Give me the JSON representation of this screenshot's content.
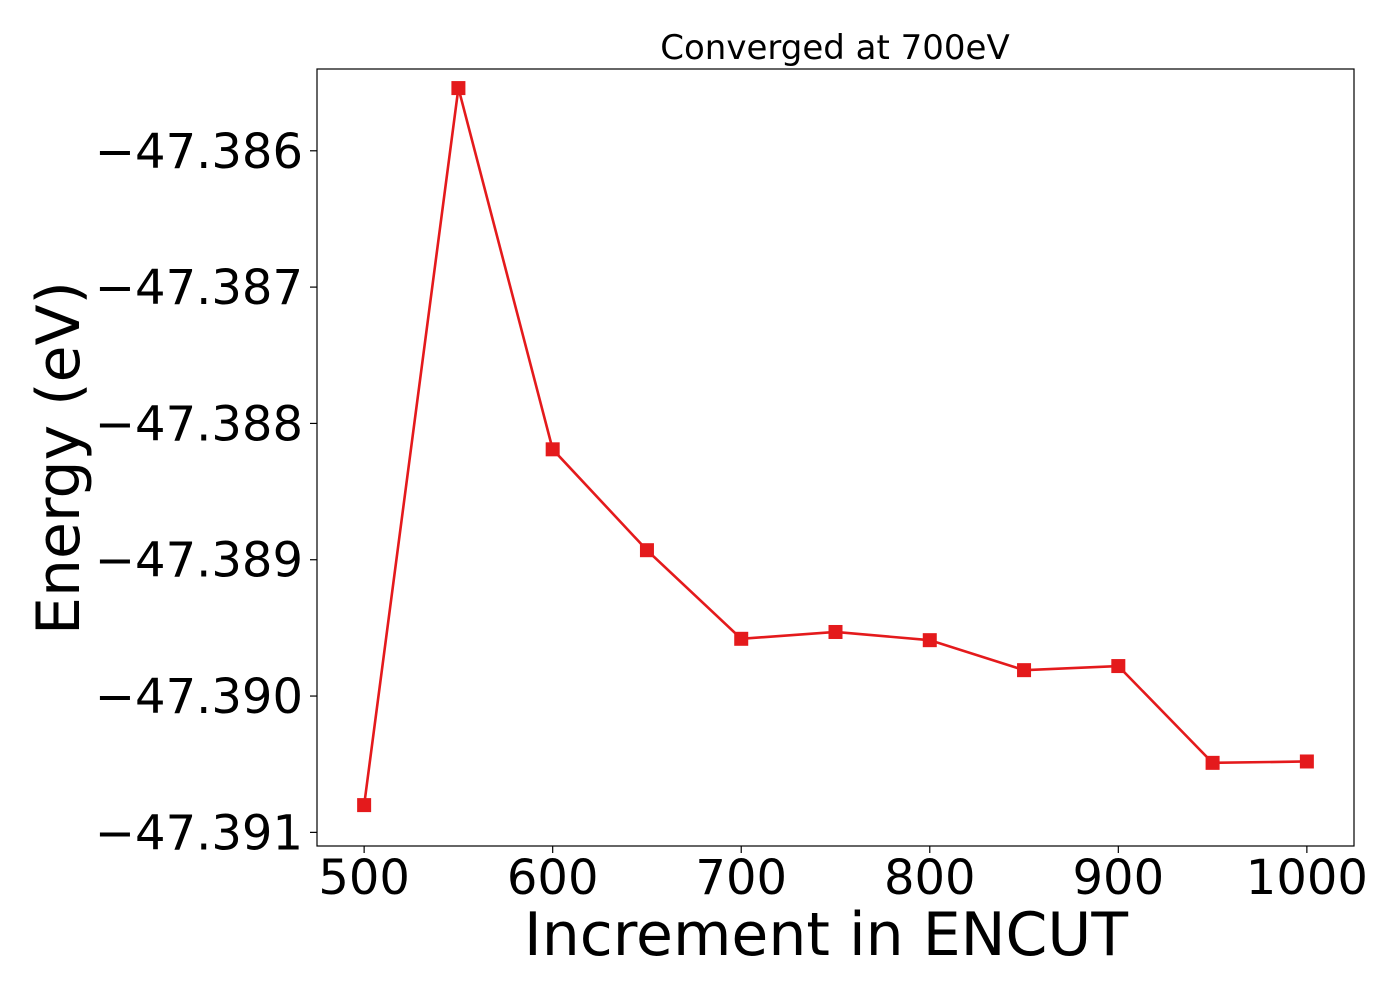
{
  "chart_data": {
    "type": "line",
    "title": "Converged at 700eV",
    "xlabel": "Increment in ENCUT",
    "ylabel": "Energy (eV)",
    "xlim": [
      475,
      1025
    ],
    "ylim": [
      -47.3911,
      -47.3854
    ],
    "xticks": [
      500,
      600,
      700,
      800,
      900,
      1000
    ],
    "xtick_labels": [
      "500",
      "600",
      "700",
      "800",
      "900",
      "1000"
    ],
    "yticks": [
      -47.386,
      -47.387,
      -47.388,
      -47.389,
      -47.39,
      -47.391
    ],
    "ytick_labels": [
      "−47.386",
      "−47.387",
      "−47.388",
      "−47.389",
      "−47.390",
      "−47.391"
    ],
    "grid": false,
    "series": [
      {
        "marker": "square",
        "color": "#e41a1c",
        "x": [
          500,
          550,
          600,
          650,
          700,
          750,
          800,
          850,
          900,
          950,
          1000
        ],
        "y": [
          -47.3908,
          -47.38554,
          -47.38819,
          -47.38893,
          -47.38958,
          -47.38953,
          -47.38959,
          -47.38981,
          -47.38978,
          -47.39049,
          -47.39048
        ]
      }
    ]
  }
}
